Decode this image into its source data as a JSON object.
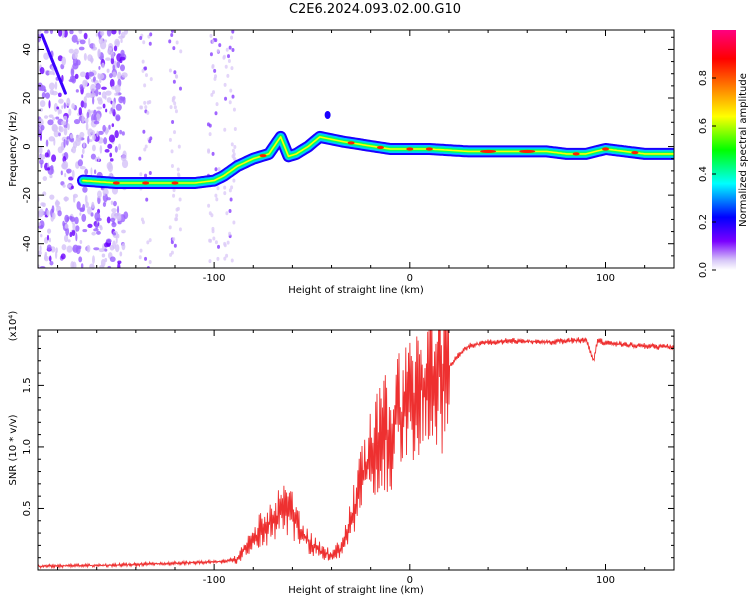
{
  "figure": {
    "title": "C2E6.2024.093.02.00.G10"
  },
  "chart_data": [
    {
      "type": "heatmap",
      "xlabel": "Height of straight line (km)",
      "ylabel": "Frequency (Hz)",
      "xlim": [
        -190,
        135
      ],
      "ylim": [
        -50,
        48
      ],
      "xticks": [
        -100,
        0,
        100
      ],
      "xtick_labels": [
        "-100",
        "0",
        "100"
      ],
      "yticks": [
        -40,
        -20,
        0,
        20,
        40
      ],
      "ytick_labels": [
        "-40",
        "-20",
        "0",
        "20",
        "40"
      ],
      "colorbar": {
        "label": "Normalized spectral amplitude",
        "range": [
          0,
          1
        ],
        "ticks": [
          0.0,
          0.2,
          0.4,
          0.6,
          0.8
        ],
        "tick_labels": [
          "0.0",
          "0.2",
          "0.4",
          "0.6",
          "0.8"
        ],
        "colormap": [
          "#d8c8f8",
          "#7a00ff",
          "#0000ff",
          "#00ffff",
          "#00ff00",
          "#ffff00",
          "#ff8000",
          "#ff0000",
          "#ff0080"
        ]
      },
      "ridge": {
        "x": [
          -167,
          -150,
          -130,
          -110,
          -100,
          -95,
          -88,
          -80,
          -72,
          -66,
          -62,
          -58,
          -52,
          -46,
          -40,
          -34,
          -26,
          -18,
          -10,
          0,
          10,
          30,
          50,
          70,
          80,
          90,
          100,
          110,
          120,
          135
        ],
        "y": [
          -14,
          -15,
          -15,
          -15,
          -14,
          -12,
          -8,
          -5,
          -3,
          4,
          -4,
          -3,
          0,
          4,
          3,
          2,
          1,
          0,
          -1,
          -1,
          -1,
          -2,
          -2,
          -2,
          -3,
          -3,
          -1,
          -2,
          -3,
          -3
        ]
      },
      "grid": false
    },
    {
      "type": "line",
      "xlabel": "Height of straight line (km)",
      "ylabel": "SNR (10 * v/v)",
      "y_multiplier": "(x10⁴)",
      "xlim": [
        -190,
        135
      ],
      "ylim": [
        0,
        19500
      ],
      "xticks": [
        -100,
        0,
        100
      ],
      "xtick_labels": [
        "-100",
        "0",
        "100"
      ],
      "yticks": [
        5000,
        10000,
        15000
      ],
      "ytick_labels": [
        "0.5",
        "1.0",
        "1.5"
      ],
      "color": "#ee3030",
      "x": [
        -190,
        -170,
        -150,
        -130,
        -110,
        -95,
        -88,
        -80,
        -75,
        -70,
        -65,
        -60,
        -55,
        -50,
        -45,
        -40,
        -35,
        -30,
        -25,
        -20,
        -15,
        -10,
        -5,
        0,
        5,
        10,
        15,
        20,
        25,
        30,
        40,
        50,
        60,
        70,
        80,
        90,
        94,
        96,
        100,
        110,
        120,
        135
      ],
      "y": [
        300,
        350,
        400,
        500,
        600,
        700,
        900,
        2500,
        3500,
        3800,
        5000,
        4500,
        3000,
        2000,
        1500,
        1200,
        1800,
        4000,
        7000,
        9000,
        10500,
        11500,
        12500,
        13500,
        14500,
        15000,
        15800,
        16500,
        17500,
        18200,
        18500,
        18600,
        18600,
        18500,
        18600,
        18700,
        17000,
        18700,
        18400,
        18300,
        18200,
        18100
      ]
    }
  ]
}
